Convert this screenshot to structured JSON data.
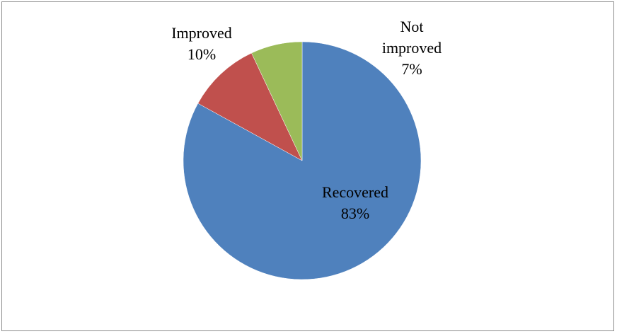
{
  "chart_data": {
    "type": "pie",
    "title": "",
    "slices": [
      {
        "label": "Recovered",
        "value": 83,
        "display": "83%",
        "color": "#4f81bd"
      },
      {
        "label": "Improved",
        "value": 10,
        "display": "10%",
        "color": "#c0504d"
      },
      {
        "label": "Not improved",
        "value": 7,
        "display": "7%",
        "color": "#9bbb59"
      }
    ],
    "legend": "none",
    "start": "12 o'clock, clockwise"
  }
}
